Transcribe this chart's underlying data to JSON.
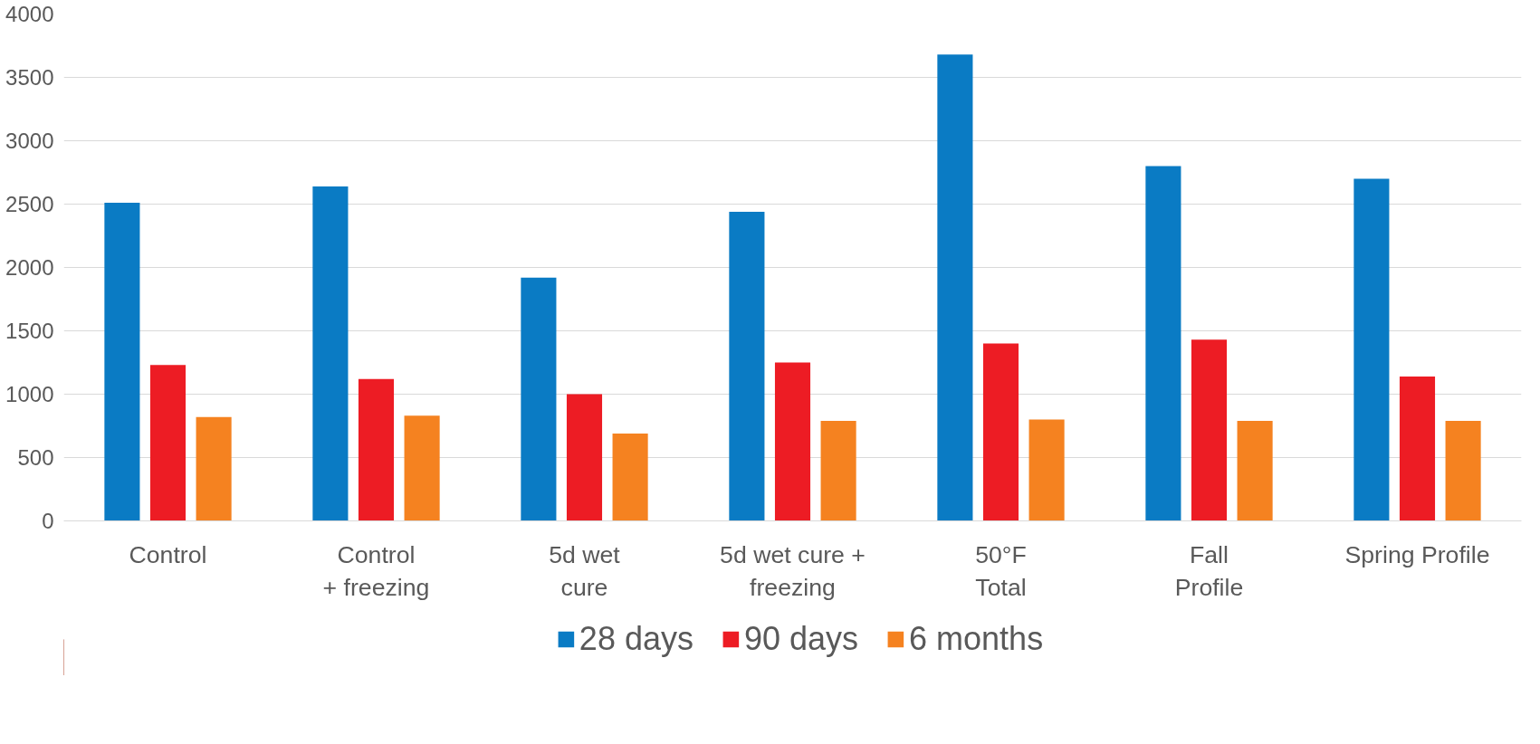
{
  "chart_data": {
    "type": "bar",
    "categories": [
      "Control",
      "Control\n+ freezing",
      "5d wet\ncure",
      "5d wet cure +\nfreezing",
      "50°F\nTotal",
      "Fall\nProfile",
      "Spring Profile"
    ],
    "series": [
      {
        "name": "28 days",
        "color": "#0a7bc4",
        "values": [
          2510,
          2640,
          1920,
          2440,
          3680,
          2800,
          2700
        ]
      },
      {
        "name": "90 days",
        "color": "#ed1c24",
        "values": [
          1230,
          1120,
          1000,
          1250,
          1400,
          1430,
          1140
        ]
      },
      {
        "name": "6 months",
        "color": "#f58220",
        "values": [
          820,
          830,
          690,
          790,
          800,
          790,
          790
        ]
      }
    ],
    "ylim": [
      0,
      4000
    ],
    "yticks": [
      0,
      500,
      1000,
      1500,
      2000,
      2500,
      3000,
      3500,
      4000
    ],
    "grid": "y",
    "legend": "bottom"
  }
}
